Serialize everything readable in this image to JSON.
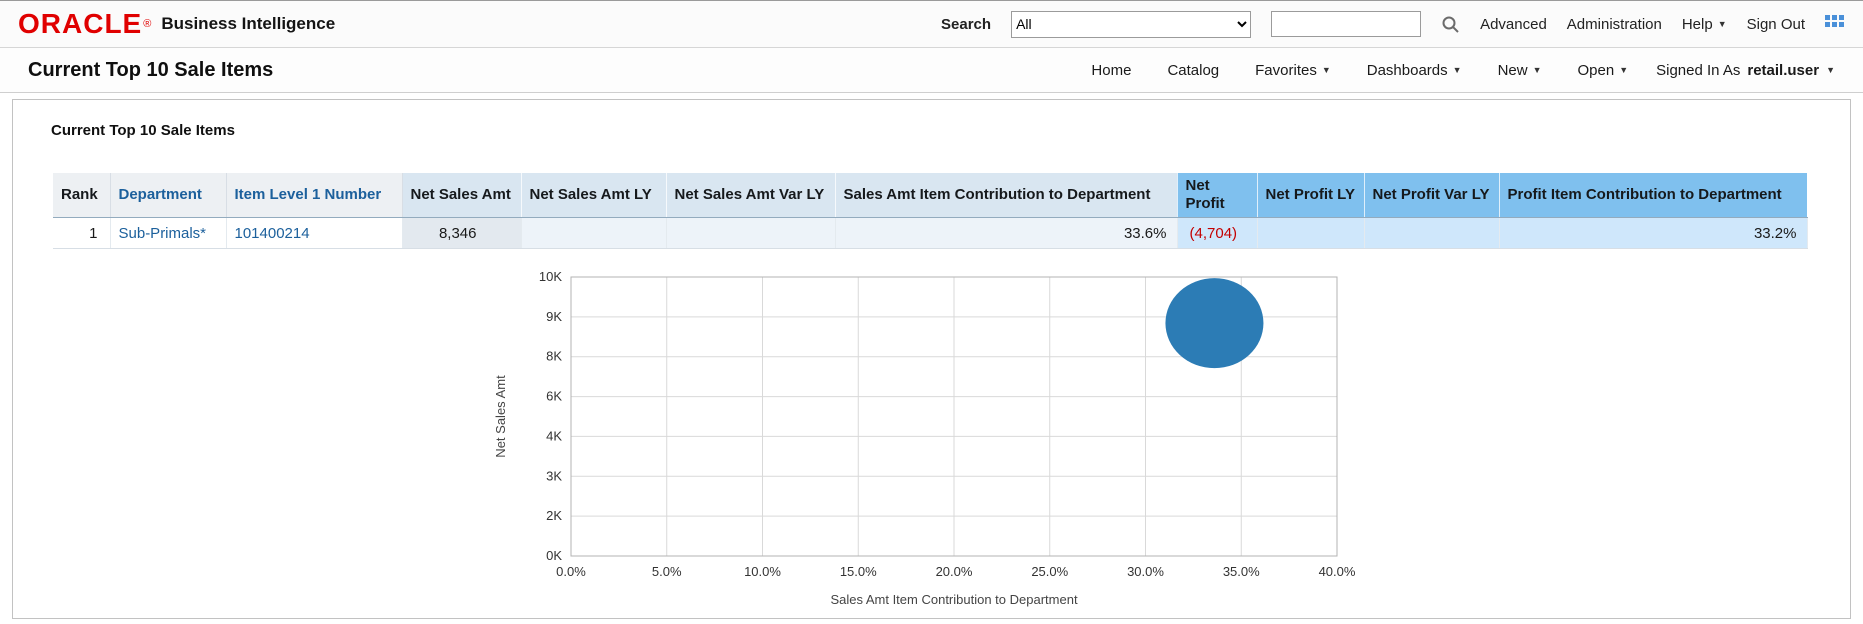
{
  "header": {
    "logo": "ORACLE",
    "registered": "®",
    "product": "Business Intelligence",
    "search_label": "Search",
    "scope_value": "All",
    "advanced_label": "Advanced",
    "administration_label": "Administration",
    "help_label": "Help",
    "sign_out_label": "Sign Out"
  },
  "toolbar": {
    "page_title": "Current Top 10 Sale Items",
    "menu": [
      "Home",
      "Catalog",
      "Favorites",
      "Dashboards",
      "New",
      "Open"
    ],
    "signed_in_label": "Signed In As",
    "user": "retail.user"
  },
  "panel": {
    "title": "Current Top 10 Sale Items"
  },
  "table": {
    "columns": [
      "Rank",
      "Department",
      "Item Level 1 Number",
      "Net Sales Amt",
      "Net Sales Amt LY",
      "Net Sales Amt Var LY",
      "Sales Amt Item Contribution to Department",
      "Net Profit",
      "Net Profit LY",
      "Net Profit Var LY",
      "Profit Item Contribution to Department"
    ],
    "rows": [
      [
        "1",
        "Sub-Primals*",
        "101400214",
        "8,346",
        "",
        "",
        "33.6%",
        "(4,704)",
        "",
        "",
        "33.2%"
      ]
    ]
  },
  "chart_data": {
    "type": "scatter",
    "title": "",
    "xlabel": "Sales Amt Item Contribution to Department",
    "ylabel": "Net Sales Amt",
    "xlim": [
      0,
      40
    ],
    "ylim": [
      0,
      10000
    ],
    "x_ticks": [
      "0.0%",
      "5.0%",
      "10.0%",
      "15.0%",
      "20.0%",
      "25.0%",
      "30.0%",
      "35.0%",
      "40.0%"
    ],
    "y_ticks": [
      "10K",
      "9K",
      "8K",
      "6K",
      "4K",
      "3K",
      "2K",
      "0K"
    ],
    "grid": true,
    "legend": false,
    "points": [
      {
        "x": 33.6,
        "y": 8346
      }
    ],
    "bubble_color": "#2c7cb5"
  },
  "icons": {
    "caret": "▼"
  },
  "colors": {
    "oracle_red": "#e00000",
    "link_blue": "#1c609c",
    "header_blue": "#d9e6f1",
    "header_highlight": "#7fc0ee",
    "negative_red": "#c40000"
  }
}
